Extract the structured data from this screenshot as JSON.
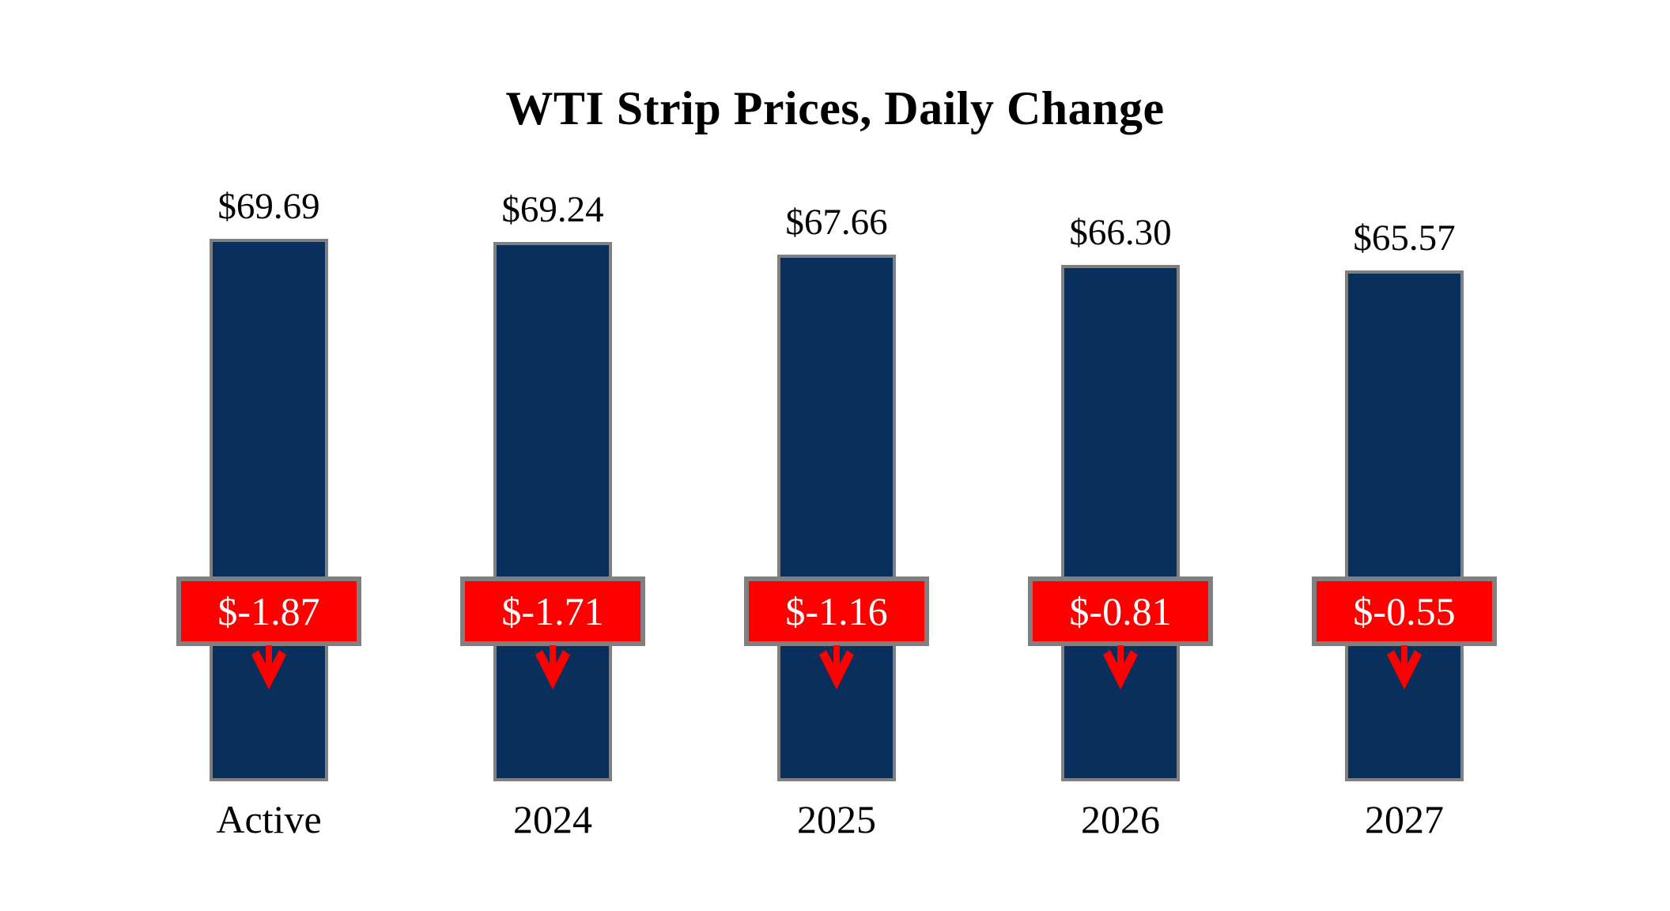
{
  "title": "WTI Strip Prices, Daily Change",
  "colors": {
    "bar_fill": "#092F5C",
    "bar_border": "#808080",
    "change_box_fill": "#FE0000",
    "change_box_border": "#808080",
    "change_text": "#FFFFFF",
    "label_text": "#000000",
    "arrow": "#FE0000"
  },
  "chart_data": {
    "type": "bar",
    "title": "WTI Strip Prices, Daily Change",
    "categories": [
      "Active",
      "2024",
      "2025",
      "2026",
      "2027"
    ],
    "series": [
      {
        "name": "WTI Strip Price",
        "values": [
          69.69,
          69.24,
          67.66,
          66.3,
          65.57
        ]
      },
      {
        "name": "Daily Change",
        "values": [
          -1.87,
          -1.71,
          -1.16,
          -0.81,
          -0.55
        ]
      }
    ],
    "bars": [
      {
        "category": "Active",
        "price": 69.69,
        "price_label": "$69.69",
        "change": -1.87,
        "change_label": "$-1.87"
      },
      {
        "category": "2024",
        "price": 69.24,
        "price_label": "$69.24",
        "change": -1.71,
        "change_label": "$-1.71"
      },
      {
        "category": "2025",
        "price": 67.66,
        "price_label": "$67.66",
        "change": -1.16,
        "change_label": "$-1.16"
      },
      {
        "category": "2026",
        "price": 66.3,
        "price_label": "$66.30",
        "change": -0.81,
        "change_label": "$-0.81"
      },
      {
        "category": "2027",
        "price": 65.57,
        "price_label": "$65.57",
        "change": -0.55,
        "change_label": "$-0.55"
      }
    ],
    "layout_hints": {
      "bar_direction": "vertical",
      "grid": false,
      "legend": "none",
      "value_labels": "above each bar",
      "change_labels": "red boxes with down arrows overlaid on bars at a common row",
      "background": "white"
    }
  }
}
